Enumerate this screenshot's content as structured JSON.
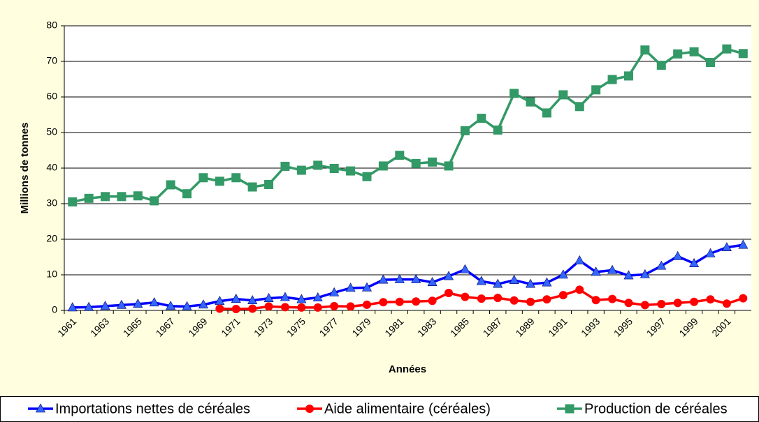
{
  "chart_data": {
    "type": "line",
    "x_label": "Années",
    "y_label": "Millions de tonnes",
    "categories": [
      "1961",
      null,
      "1963",
      null,
      "1965",
      null,
      "1967",
      null,
      "1969",
      null,
      "1971",
      null,
      "1973",
      null,
      "1975",
      null,
      "1977",
      null,
      "1979",
      null,
      "1981",
      null,
      "1983",
      null,
      "1985",
      null,
      "1987",
      null,
      "1989",
      null,
      "1991",
      null,
      "1993",
      null,
      "1995",
      null,
      "1997",
      null,
      "1999",
      null,
      "2001",
      null
    ],
    "series": [
      {
        "name": "Importations nettes de céréales",
        "color": "#0000ff",
        "marker_color": "#3366ff",
        "marker": "triangle",
        "values": [
          0.8,
          0.9,
          1.2,
          1.5,
          1.8,
          2.2,
          1.2,
          1.1,
          1.6,
          2.6,
          3.2,
          2.8,
          3.4,
          3.7,
          3.1,
          3.6,
          5,
          6.3,
          6.4,
          8.6,
          8.7,
          8.7,
          7.9,
          9.6,
          11.5,
          8.2,
          7.4,
          8.5,
          7.4,
          7.8,
          10,
          14,
          10.8,
          11.3,
          9.8,
          10.1,
          12.5,
          15.2,
          13.2,
          16,
          17.7,
          18.4
        ]
      },
      {
        "name": "Aide alimentaire (céréales)",
        "color": "#ff0000",
        "marker_color": "#ff0000",
        "marker": "circle",
        "values": [
          null,
          null,
          null,
          null,
          null,
          null,
          null,
          null,
          null,
          0.5,
          0.4,
          0.5,
          1.1,
          0.9,
          0.8,
          0.8,
          1.2,
          1.1,
          1.6,
          2.3,
          2.4,
          2.5,
          2.7,
          4.9,
          3.8,
          3.3,
          3.5,
          2.8,
          2.4,
          3.1,
          4.3,
          5.8,
          2.9,
          3.2,
          2.1,
          1.5,
          1.8,
          2.1,
          2.4,
          3.1,
          1.9,
          3.4
        ]
      },
      {
        "name": "Production de céréales",
        "color": "#339966",
        "marker_color": "#339966",
        "marker": "square",
        "values": [
          30.5,
          31.5,
          32,
          32,
          32.2,
          30.8,
          35.3,
          32.8,
          37.3,
          36.3,
          37.3,
          34.7,
          35.4,
          40.5,
          39.4,
          40.8,
          39.9,
          39.2,
          37.6,
          40.6,
          43.6,
          41.3,
          41.7,
          40.6,
          50.5,
          54,
          50.7,
          61,
          58.6,
          55.5,
          60.6,
          57.3,
          62,
          64.9,
          65.9,
          73.2,
          68.9,
          72.1,
          72.7,
          69.7,
          73.5,
          72.2
        ]
      }
    ],
    "ylim": [
      0,
      80
    ],
    "yticks": [
      0,
      10,
      20,
      30,
      40,
      50,
      60,
      70,
      80
    ],
    "grid": true,
    "legend": "bottom"
  }
}
